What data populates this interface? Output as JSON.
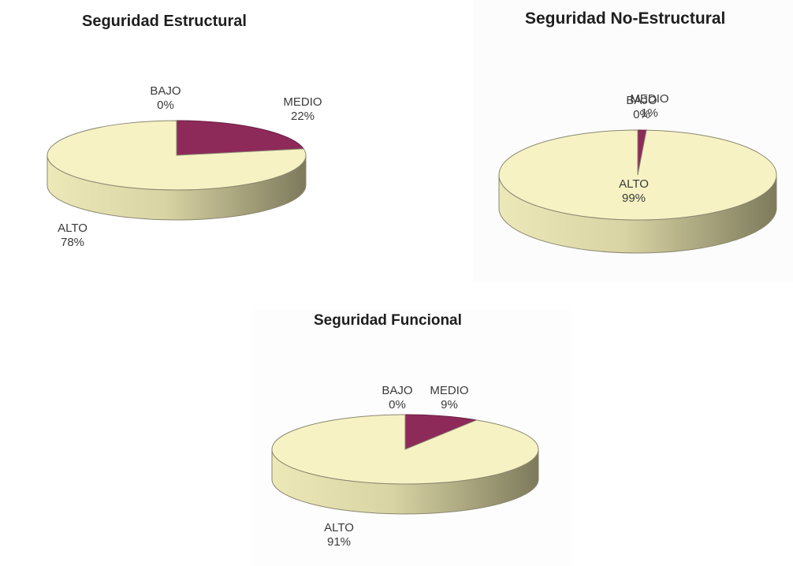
{
  "colors": {
    "alto_top": "#f6f2c3",
    "alto_side": "#d9d4a4",
    "medio_top": "#8e2a5a",
    "medio_side": "#6a1d43",
    "outline": "#8a8770",
    "text": "#3a3a3a",
    "title": "#1e1e1e"
  },
  "chart_data": [
    {
      "type": "pie",
      "title": "Seguridad Estructural",
      "slices": [
        {
          "label": "BAJO",
          "value": 0,
          "value_label": "0%"
        },
        {
          "label": "MEDIO",
          "value": 22,
          "value_label": "22%"
        },
        {
          "label": "ALTO",
          "value": 78,
          "value_label": "78%"
        }
      ]
    },
    {
      "type": "pie",
      "title": "Seguridad No-Estructural",
      "slices": [
        {
          "label": "BAJO",
          "value": 0,
          "value_label": "0%"
        },
        {
          "label": "MEDIO",
          "value": 1,
          "value_label": "1%"
        },
        {
          "label": "ALTO",
          "value": 99,
          "value_label": "99%"
        }
      ]
    },
    {
      "type": "pie",
      "title": "Seguridad Funcional",
      "slices": [
        {
          "label": "BAJO",
          "value": 0,
          "value_label": "0%"
        },
        {
          "label": "MEDIO",
          "value": 9,
          "value_label": "9%"
        },
        {
          "label": "ALTO",
          "value": 91,
          "value_label": "91%"
        }
      ]
    }
  ]
}
